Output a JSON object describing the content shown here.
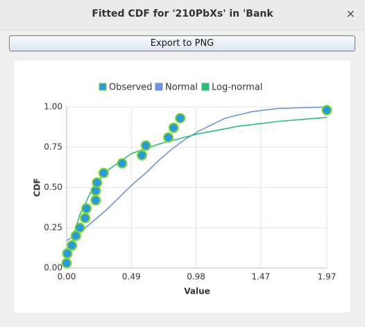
{
  "window": {
    "title": "Fitted CDF for '210PbXs' in 'Bank",
    "close": "×",
    "button": "Export to PNG"
  },
  "chart_data": {
    "type": "line",
    "x_label": "Value",
    "y_label": "CDF",
    "xlim": [
      0,
      1.97
    ],
    "ylim": [
      0,
      1
    ],
    "xticks": [
      {
        "value": 0,
        "label": "0.00"
      },
      {
        "value": 0.49,
        "label": "0.49"
      },
      {
        "value": 0.98,
        "label": "0.98"
      },
      {
        "value": 1.47,
        "label": "1.47"
      },
      {
        "value": 1.97,
        "label": "1.97"
      }
    ],
    "yticks": [
      {
        "value": 0,
        "label": "0.00"
      },
      {
        "value": 0.25,
        "label": "0.25"
      },
      {
        "value": 0.5,
        "label": "0.50"
      },
      {
        "value": 0.75,
        "label": "0.75"
      },
      {
        "value": 1,
        "label": "1.00"
      }
    ],
    "grid": true,
    "legend": "top",
    "series": [
      {
        "name": "Observed",
        "type": "scatter",
        "color": "#2a9bd8",
        "edge_color": "#7bd630",
        "x": [
          0,
          0.005,
          0.04,
          0.07,
          0.1,
          0.14,
          0.15,
          0.22,
          0.22,
          0.23,
          0.28,
          0.42,
          0.57,
          0.6,
          0.77,
          0.81,
          0.86,
          1.97
        ],
        "values": [
          0.03,
          0.09,
          0.14,
          0.2,
          0.25,
          0.31,
          0.37,
          0.42,
          0.48,
          0.53,
          0.59,
          0.65,
          0.7,
          0.76,
          0.81,
          0.87,
          0.93,
          0.98
        ]
      },
      {
        "name": "Normal",
        "type": "line",
        "color": "#6f92dc",
        "x": [
          0,
          0.1,
          0.2,
          0.3,
          0.4,
          0.5,
          0.6,
          0.7,
          0.8,
          0.9,
          1.0,
          1.2,
          1.4,
          1.6,
          1.97
        ],
        "values": [
          0.17,
          0.22,
          0.29,
          0.36,
          0.44,
          0.52,
          0.59,
          0.67,
          0.74,
          0.8,
          0.85,
          0.93,
          0.97,
          0.99,
          1.0
        ]
      },
      {
        "name": "Log-normal",
        "type": "line",
        "color": "#2fbb78",
        "x": [
          0,
          0.02,
          0.05,
          0.1,
          0.2,
          0.3,
          0.49,
          0.7,
          0.98,
          1.3,
          1.6,
          1.97
        ],
        "values": [
          0,
          0.08,
          0.2,
          0.33,
          0.5,
          0.6,
          0.71,
          0.77,
          0.83,
          0.88,
          0.91,
          0.935
        ]
      }
    ]
  }
}
